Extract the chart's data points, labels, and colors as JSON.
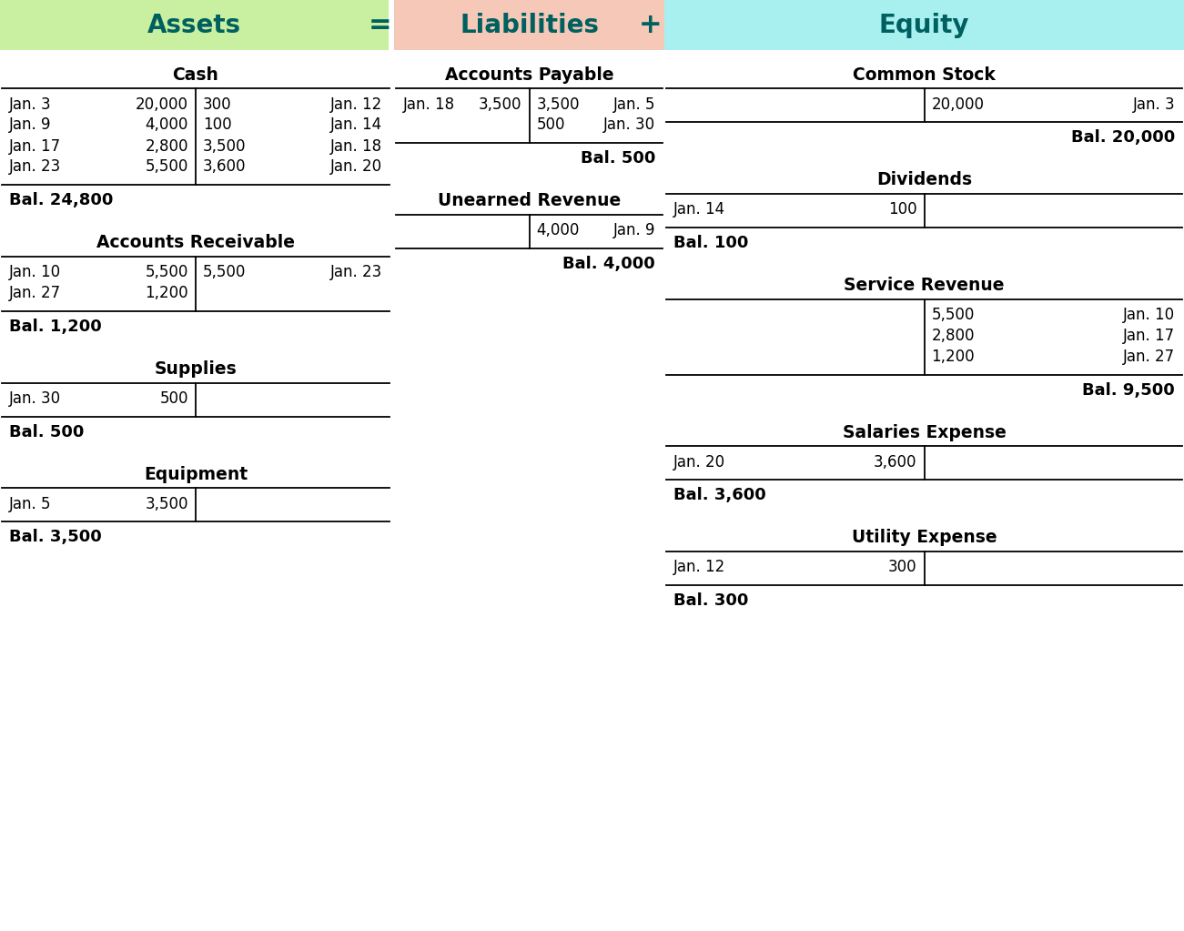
{
  "header_assets_color": "#c8f0a0",
  "header_liabilities_color": "#f5c8b8",
  "header_equity_color": "#a8f0f0",
  "header_text_color": "#006060",
  "line_color": "#000000",
  "background_color": "#ffffff",
  "assets_accounts": [
    {
      "title": "Cash",
      "left_entries": [
        [
          "Jan. 3",
          "20,000"
        ],
        [
          "Jan. 9",
          "4,000"
        ],
        [
          "Jan. 17",
          "2,800"
        ],
        [
          "Jan. 23",
          "5,500"
        ]
      ],
      "right_entries": [
        [
          "300",
          "Jan. 12"
        ],
        [
          "100",
          "Jan. 14"
        ],
        [
          "3,500",
          "Jan. 18"
        ],
        [
          "3,600",
          "Jan. 20"
        ]
      ],
      "balance_side": "left",
      "balance": "Bal. 24,800"
    },
    {
      "title": "Accounts Receivable",
      "left_entries": [
        [
          "Jan. 10",
          "5,500"
        ],
        [
          "Jan. 27",
          "1,200"
        ]
      ],
      "right_entries": [
        [
          "5,500",
          "Jan. 23"
        ]
      ],
      "balance_side": "left",
      "balance": "Bal. 1,200"
    },
    {
      "title": "Supplies",
      "left_entries": [
        [
          "Jan. 30",
          "500"
        ]
      ],
      "right_entries": [],
      "balance_side": "left",
      "balance": "Bal. 500"
    },
    {
      "title": "Equipment",
      "left_entries": [
        [
          "Jan. 5",
          "3,500"
        ]
      ],
      "right_entries": [],
      "balance_side": "left",
      "balance": "Bal. 3,500"
    }
  ],
  "liabilities_accounts": [
    {
      "title": "Accounts Payable",
      "left_entries": [
        [
          "Jan. 18",
          "3,500"
        ]
      ],
      "right_entries": [
        [
          "3,500",
          "Jan. 5"
        ],
        [
          "500",
          "Jan. 30"
        ]
      ],
      "balance_side": "right",
      "balance": "Bal. 500"
    },
    {
      "title": "Unearned Revenue",
      "left_entries": [],
      "right_entries": [
        [
          "4,000",
          "Jan. 9"
        ]
      ],
      "balance_side": "right",
      "balance": "Bal. 4,000"
    }
  ],
  "equity_accounts": [
    {
      "title": "Common Stock",
      "left_entries": [],
      "right_entries": [
        [
          "20,000",
          "Jan. 3"
        ]
      ],
      "balance_side": "right",
      "balance": "Bal. 20,000"
    },
    {
      "title": "Dividends",
      "left_entries": [
        [
          "Jan. 14",
          "100"
        ]
      ],
      "right_entries": [],
      "balance_side": "left",
      "balance": "Bal. 100"
    },
    {
      "title": "Service Revenue",
      "left_entries": [],
      "right_entries": [
        [
          "5,500",
          "Jan. 10"
        ],
        [
          "2,800",
          "Jan. 17"
        ],
        [
          "1,200",
          "Jan. 27"
        ]
      ],
      "balance_side": "right",
      "balance": "Bal. 9,500"
    },
    {
      "title": "Salaries Expense",
      "left_entries": [
        [
          "Jan. 20",
          "3,600"
        ]
      ],
      "right_entries": [],
      "balance_side": "left",
      "balance": "Bal. 3,600"
    },
    {
      "title": "Utility Expense",
      "left_entries": [
        [
          "Jan. 12",
          "300"
        ]
      ],
      "right_entries": [],
      "balance_side": "left",
      "balance": "Bal. 300"
    }
  ]
}
